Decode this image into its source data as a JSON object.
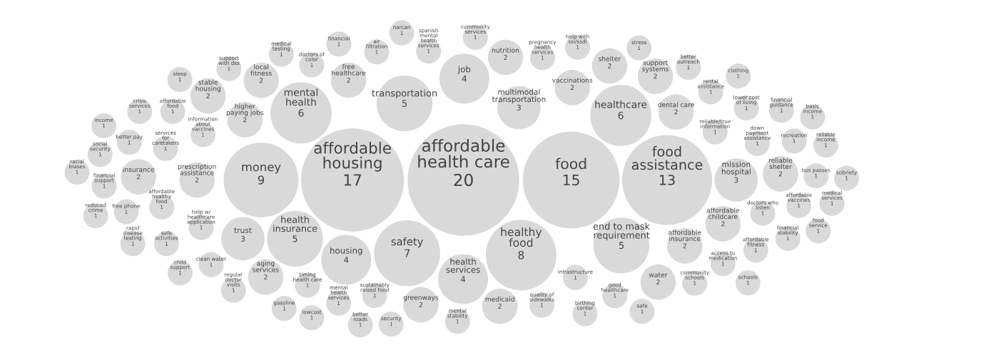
{
  "chart_data": {
    "type": "other",
    "categories": [
      "affordable health care",
      "affordable housing",
      "food",
      "food assistance",
      "money",
      "healthy food",
      "safety",
      "healthcare",
      "mental health",
      "health insurance",
      "transportation",
      "end to mask requirement",
      "housing",
      "health services",
      "job",
      "trust",
      "mission hospital",
      "multimodal transportation",
      "reliable shelter",
      "affordable insurance",
      "local fitness",
      "water",
      "medicaid",
      "higher paying jobs",
      "shelter",
      "nutrition",
      "aging services",
      "prescription assistance",
      "support systems",
      "insurance",
      "affordable childcare",
      "greenways",
      "dental care",
      "free healthcare",
      "stable housing",
      "vaccinations",
      "information about vaccines",
      "birthing center",
      "recreation",
      "gasoline",
      "community schools",
      "security",
      "social security",
      "regular doctor visits",
      "better outreach",
      "sleep",
      "quality of sidewalks",
      "down payment assistance",
      "doctors of color",
      "clean water",
      "stress",
      "pregnancy health services",
      "services for caretakers",
      "doctors who listen",
      "financial stability",
      "safe",
      "basic income",
      "financial support",
      "good healthcare",
      "help with ssi/ssdi",
      "rapid disease testing",
      "income",
      "spanish mental health services",
      "racial biases",
      "crisis services",
      "financial",
      "reliable/true information",
      "financial guidance",
      "rental assistance",
      "sobriety",
      "narcan",
      "help w/ healthcare application",
      "access to medication",
      "child support",
      "support with dss",
      "lowcost",
      "medical testing",
      "reliable income",
      "mental health services",
      "mental stability",
      "sustainably raised food",
      "lower cost of living",
      "clothing",
      "schools",
      "safe activities",
      "infrastructure",
      "timing health care",
      "community services",
      "food service",
      "free phone",
      "medical services",
      "better pay",
      "affordable food",
      "affordable vaccines",
      "better roads",
      "affordable healthy food",
      "air filtration",
      "reduced crime",
      "affordable fitness",
      "bus passes"
    ],
    "values": [
      20,
      17,
      15,
      13,
      9,
      8,
      7,
      6,
      6,
      5,
      5,
      5,
      4,
      4,
      4,
      3,
      3,
      3,
      2,
      2,
      2,
      2,
      2,
      2,
      2,
      2,
      2,
      2,
      2,
      2,
      2,
      2,
      2,
      2,
      2,
      2,
      1,
      1,
      1,
      1,
      1,
      1,
      1,
      1,
      1,
      1,
      1,
      1,
      1,
      1,
      1,
      1,
      1,
      1,
      1,
      1,
      1,
      1,
      1,
      1,
      1,
      1,
      1,
      1,
      1,
      1,
      1,
      1,
      1,
      1,
      1,
      1,
      1,
      1,
      1,
      1,
      1,
      1,
      1,
      1,
      1,
      1,
      1,
      1,
      1,
      1,
      1,
      1,
      1,
      1,
      1,
      1,
      1,
      1,
      1,
      1,
      1,
      1,
      1,
      1
    ],
    "color": "#d9d9d9",
    "data_labels": true
  }
}
